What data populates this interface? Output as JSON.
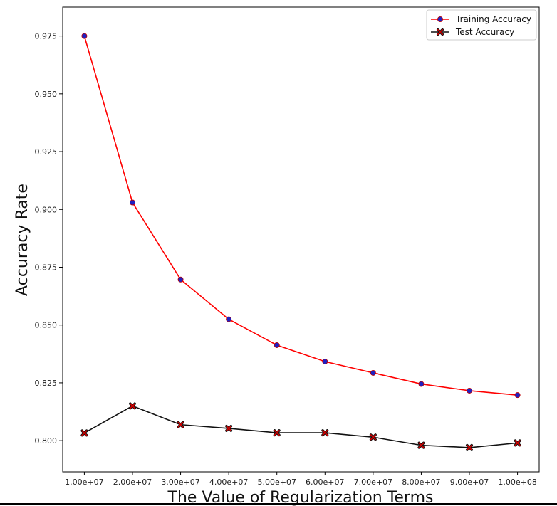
{
  "chart_data": {
    "type": "line",
    "title": "",
    "xlabel": "The Value of Regularization Terms",
    "ylabel": "Accuracy Rate",
    "x": [
      10000000,
      20000000,
      30000000,
      40000000,
      50000000,
      60000000,
      70000000,
      80000000,
      90000000,
      100000000
    ],
    "x_tick_labels": [
      "1.00e+07",
      "2.00e+07",
      "3.00e+07",
      "4.00e+07",
      "5.00e+07",
      "6.00e+07",
      "7.00e+07",
      "8.00e+07",
      "9.00e+07",
      "1.00e+08"
    ],
    "y_ticks": [
      0.8,
      0.825,
      0.85,
      0.875,
      0.9,
      0.925,
      0.95,
      0.975
    ],
    "y_tick_labels": [
      "0.800",
      "0.825",
      "0.850",
      "0.875",
      "0.900",
      "0.925",
      "0.950",
      "0.975"
    ],
    "ylim": [
      0.7865,
      0.9875
    ],
    "xlim": [
      5500000,
      104500000
    ],
    "grid": false,
    "legend_position": "top-right",
    "series": [
      {
        "name": "Training Accuracy",
        "line_color": "#ff0000",
        "marker": "circle",
        "marker_face": "#2020c0",
        "marker_edge": "#c00000",
        "values": [
          0.975,
          0.903,
          0.8697,
          0.8525,
          0.8413,
          0.8342,
          0.8293,
          0.8245,
          0.8216,
          0.8197
        ]
      },
      {
        "name": "Test Accuracy",
        "line_color": "#111111",
        "marker": "x",
        "marker_face": "#cc0000",
        "marker_edge": "#111111",
        "values": [
          0.8033,
          0.815,
          0.8069,
          0.8053,
          0.8034,
          0.8034,
          0.8015,
          0.798,
          0.797,
          0.799
        ]
      }
    ]
  }
}
